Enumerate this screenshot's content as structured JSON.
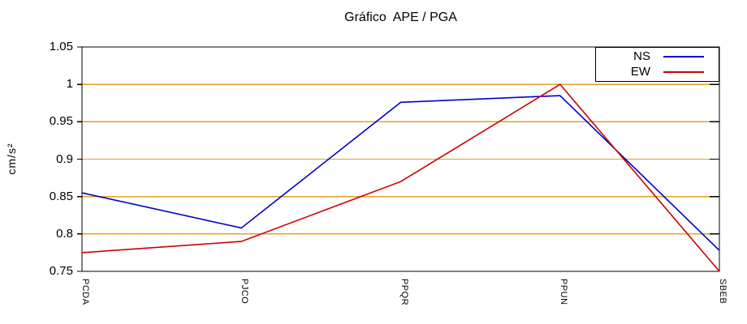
{
  "title": "Gráfico  APE / PGA",
  "colors": {
    "grid": "#e0a227",
    "frame": "#000000",
    "ns_line": "#0000cc",
    "ew_line": "#cc0000",
    "background": "#ffffff"
  },
  "chart_data": {
    "type": "line",
    "title": "Gráfico  APE / PGA",
    "xlabel": "",
    "ylabel": "cm/s²",
    "categories": [
      "PCDA",
      "PJCO",
      "PPQR",
      "PPUN",
      "SBEB"
    ],
    "series": [
      {
        "name": "NS",
        "color": "#0000cc",
        "values": [
          0.855,
          0.808,
          0.976,
          0.985,
          0.778
        ]
      },
      {
        "name": "EW",
        "color": "#cc0000",
        "values": [
          0.775,
          0.79,
          0.87,
          1.0,
          0.75
        ]
      }
    ],
    "ylim": [
      0.75,
      1.05
    ],
    "yticks": [
      0.75,
      0.8,
      0.85,
      0.9,
      0.95,
      1,
      1.05
    ],
    "ytick_labels": [
      "0.75",
      "0.8",
      "0.85",
      "0.9",
      "0.95",
      "1",
      "1.05"
    ],
    "grid_values": [
      0.8,
      0.85,
      0.9,
      0.95,
      1.0
    ],
    "grid": true,
    "grid_color": "#e0a227",
    "legend_position": "top-right",
    "legend_box": true
  }
}
